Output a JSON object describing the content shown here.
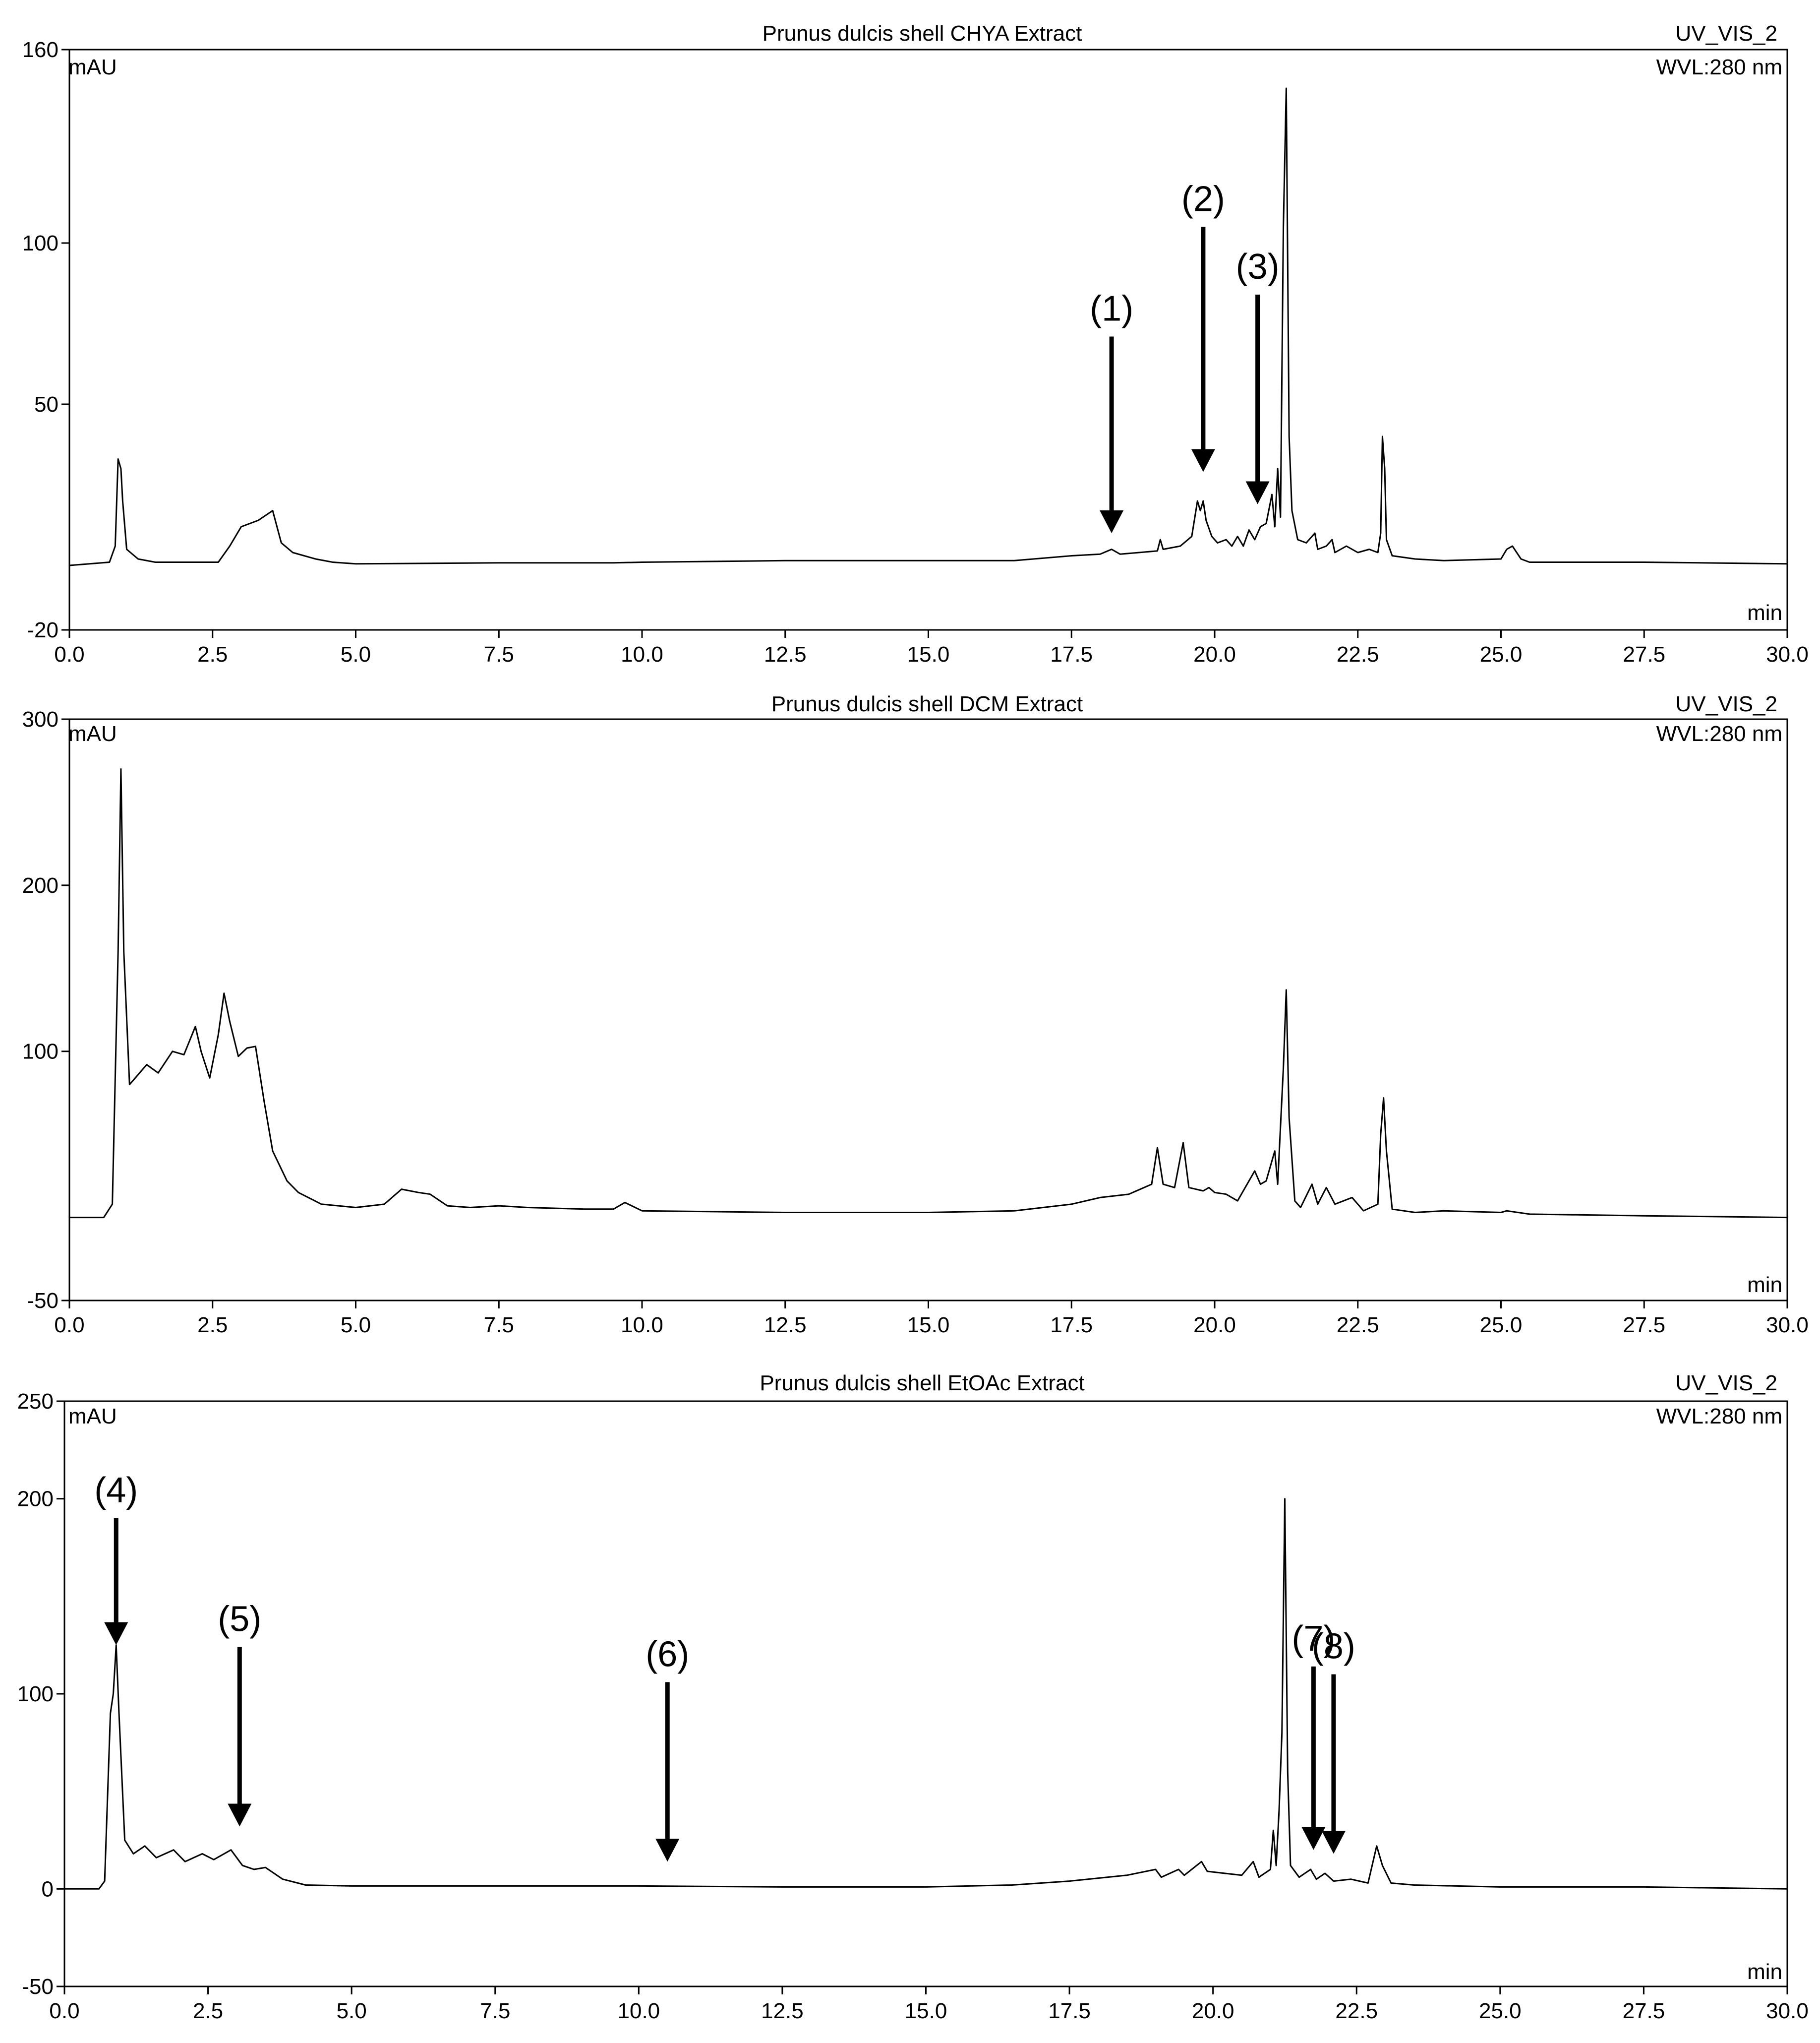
{
  "chart_data": [
    {
      "type": "line",
      "title": "Prunus dulcis shell CHYA Extract",
      "detector": "UV_VIS_2",
      "wavelength": "WVL:280 nm",
      "ylabel": "mAU",
      "xlabel": "min",
      "xlim": [
        0,
        30
      ],
      "ylim": [
        -20,
        160
      ],
      "x_ticks": [
        "0.0",
        "2.5",
        "5.0",
        "7.5",
        "10.0",
        "12.5",
        "15.0",
        "17.5",
        "20.0",
        "22.5",
        "25.0",
        "27.5",
        "30.0"
      ],
      "y_ticks": [
        {
          "value": -20,
          "label": "-20"
        },
        {
          "value": 50,
          "label": "50"
        },
        {
          "value": 100,
          "label": "100"
        },
        {
          "value": 160,
          "label": "160"
        }
      ],
      "trace": [
        [
          0,
          0
        ],
        [
          0.7,
          1
        ],
        [
          0.8,
          6
        ],
        [
          0.85,
          33
        ],
        [
          0.9,
          30
        ],
        [
          0.93,
          20
        ],
        [
          1.0,
          5
        ],
        [
          1.2,
          2
        ],
        [
          1.5,
          1
        ],
        [
          2.0,
          1
        ],
        [
          2.6,
          1
        ],
        [
          2.8,
          6
        ],
        [
          3.0,
          12
        ],
        [
          3.3,
          14
        ],
        [
          3.55,
          17
        ],
        [
          3.7,
          7
        ],
        [
          3.9,
          4
        ],
        [
          4.3,
          2
        ],
        [
          4.6,
          1
        ],
        [
          5.0,
          0.5
        ],
        [
          7.5,
          0.8
        ],
        [
          9.5,
          0.8
        ],
        [
          10.0,
          1
        ],
        [
          12.5,
          1.5
        ],
        [
          15.0,
          1.5
        ],
        [
          16.5,
          1.5
        ],
        [
          17.5,
          3
        ],
        [
          18.0,
          3.5
        ],
        [
          18.2,
          5
        ],
        [
          18.35,
          3.5
        ],
        [
          19.0,
          4.5
        ],
        [
          19.05,
          8
        ],
        [
          19.1,
          5
        ],
        [
          19.4,
          6
        ],
        [
          19.6,
          9
        ],
        [
          19.7,
          20
        ],
        [
          19.75,
          17
        ],
        [
          19.8,
          20
        ],
        [
          19.85,
          14
        ],
        [
          19.95,
          9
        ],
        [
          20.05,
          7
        ],
        [
          20.2,
          8
        ],
        [
          20.3,
          6
        ],
        [
          20.4,
          9
        ],
        [
          20.5,
          6
        ],
        [
          20.6,
          11
        ],
        [
          20.7,
          8
        ],
        [
          20.8,
          12
        ],
        [
          20.9,
          13
        ],
        [
          21.0,
          22
        ],
        [
          21.05,
          12
        ],
        [
          21.1,
          30
        ],
        [
          21.15,
          15
        ],
        [
          21.2,
          105
        ],
        [
          21.25,
          148
        ],
        [
          21.3,
          40
        ],
        [
          21.35,
          17
        ],
        [
          21.45,
          8
        ],
        [
          21.6,
          7
        ],
        [
          21.75,
          10
        ],
        [
          21.8,
          5
        ],
        [
          21.95,
          6
        ],
        [
          22.05,
          8
        ],
        [
          22.1,
          4
        ],
        [
          22.3,
          6
        ],
        [
          22.5,
          4
        ],
        [
          22.7,
          5
        ],
        [
          22.85,
          4
        ],
        [
          22.9,
          10
        ],
        [
          22.93,
          40
        ],
        [
          22.97,
          30
        ],
        [
          23.0,
          8
        ],
        [
          23.1,
          3
        ],
        [
          23.5,
          2
        ],
        [
          24.0,
          1.5
        ],
        [
          25.0,
          2
        ],
        [
          25.1,
          5
        ],
        [
          25.2,
          6
        ],
        [
          25.35,
          2
        ],
        [
          25.5,
          1
        ],
        [
          27.5,
          1
        ],
        [
          30.0,
          0.5
        ]
      ],
      "annotations": [
        {
          "label": "(1)",
          "x": 18.2,
          "arrow_from": 71,
          "arrow_to": 10
        },
        {
          "label": "(2)",
          "x": 19.8,
          "arrow_from": 105,
          "arrow_to": 29
        },
        {
          "label": "(3)",
          "x": 20.75,
          "arrow_from": 84,
          "arrow_to": 19
        }
      ]
    },
    {
      "type": "line",
      "title": "Prunus dulcis shell DCM Extract",
      "detector": "UV_VIS_2",
      "wavelength": "WVL:280 nm",
      "ylabel": "mAU",
      "xlabel": "min",
      "xlim": [
        0,
        30
      ],
      "ylim": [
        -50,
        300
      ],
      "x_ticks": [
        "0.0",
        "2.5",
        "5.0",
        "7.5",
        "10.0",
        "12.5",
        "15.0",
        "17.5",
        "20.0",
        "22.5",
        "25.0",
        "27.5",
        "30.0"
      ],
      "y_ticks": [
        {
          "value": -50,
          "label": "-50"
        },
        {
          "value": 100,
          "label": "100"
        },
        {
          "value": 200,
          "label": "200"
        },
        {
          "value": 300,
          "label": "300"
        }
      ],
      "trace": [
        [
          0,
          0
        ],
        [
          0.6,
          0
        ],
        [
          0.75,
          8
        ],
        [
          0.85,
          160
        ],
        [
          0.9,
          270
        ],
        [
          0.95,
          160
        ],
        [
          1.05,
          80
        ],
        [
          1.2,
          86
        ],
        [
          1.35,
          92
        ],
        [
          1.55,
          87
        ],
        [
          1.8,
          100
        ],
        [
          2.0,
          98
        ],
        [
          2.2,
          115
        ],
        [
          2.3,
          100
        ],
        [
          2.45,
          84
        ],
        [
          2.6,
          110
        ],
        [
          2.7,
          135
        ],
        [
          2.8,
          118
        ],
        [
          2.95,
          97
        ],
        [
          3.1,
          102
        ],
        [
          3.25,
          103
        ],
        [
          3.4,
          70
        ],
        [
          3.55,
          40
        ],
        [
          3.8,
          22
        ],
        [
          4.0,
          15
        ],
        [
          4.4,
          8
        ],
        [
          5.0,
          6
        ],
        [
          5.5,
          8
        ],
        [
          5.8,
          17
        ],
        [
          6.1,
          15
        ],
        [
          6.3,
          14
        ],
        [
          6.6,
          7
        ],
        [
          7.0,
          6
        ],
        [
          7.5,
          7
        ],
        [
          8.0,
          6
        ],
        [
          9.0,
          5
        ],
        [
          9.5,
          5
        ],
        [
          9.7,
          9
        ],
        [
          10.0,
          4
        ],
        [
          12.5,
          3
        ],
        [
          15.0,
          3
        ],
        [
          16.5,
          4
        ],
        [
          17.5,
          8
        ],
        [
          18.0,
          12
        ],
        [
          18.5,
          14
        ],
        [
          18.9,
          20
        ],
        [
          19.0,
          42
        ],
        [
          19.1,
          20
        ],
        [
          19.3,
          18
        ],
        [
          19.45,
          45
        ],
        [
          19.55,
          18
        ],
        [
          19.8,
          16
        ],
        [
          19.9,
          18
        ],
        [
          20.0,
          15
        ],
        [
          20.2,
          14
        ],
        [
          20.4,
          10
        ],
        [
          20.6,
          22
        ],
        [
          20.7,
          28
        ],
        [
          20.8,
          20
        ],
        [
          20.9,
          22
        ],
        [
          21.05,
          40
        ],
        [
          21.1,
          20
        ],
        [
          21.2,
          90
        ],
        [
          21.25,
          137
        ],
        [
          21.3,
          60
        ],
        [
          21.4,
          10
        ],
        [
          21.5,
          6
        ],
        [
          21.7,
          20
        ],
        [
          21.8,
          8
        ],
        [
          21.95,
          18
        ],
        [
          22.1,
          8
        ],
        [
          22.4,
          12
        ],
        [
          22.6,
          4
        ],
        [
          22.85,
          8
        ],
        [
          22.9,
          50
        ],
        [
          22.95,
          72
        ],
        [
          23.0,
          40
        ],
        [
          23.1,
          5
        ],
        [
          23.5,
          3
        ],
        [
          24.0,
          4
        ],
        [
          25.0,
          3
        ],
        [
          25.1,
          4
        ],
        [
          25.5,
          2
        ],
        [
          27.5,
          1
        ],
        [
          30.0,
          0
        ]
      ]
    },
    {
      "type": "line",
      "title": "Prunus dulcis shell EtOAc Extract",
      "detector": "UV_VIS_2",
      "wavelength": "WVL:280 nm",
      "ylabel": "mAU",
      "xlabel": "min",
      "xlim": [
        0,
        30
      ],
      "ylim": [
        -50,
        250
      ],
      "x_ticks": [
        "0.0",
        "2.5",
        "5.0",
        "7.5",
        "10.0",
        "12.5",
        "15.0",
        "17.5",
        "20.0",
        "22.5",
        "25.0",
        "27.5",
        "30.0"
      ],
      "y_ticks": [
        {
          "value": -50,
          "label": "-50"
        },
        {
          "value": 0,
          "label": "0"
        },
        {
          "value": 100,
          "label": "100"
        },
        {
          "value": 200,
          "label": "200"
        },
        {
          "value": 250,
          "label": "250"
        }
      ],
      "trace": [
        [
          0,
          0
        ],
        [
          0.6,
          0
        ],
        [
          0.7,
          4
        ],
        [
          0.8,
          90
        ],
        [
          0.85,
          100
        ],
        [
          0.9,
          125
        ],
        [
          0.95,
          90
        ],
        [
          1.05,
          25
        ],
        [
          1.2,
          18
        ],
        [
          1.4,
          22
        ],
        [
          1.6,
          16
        ],
        [
          1.9,
          20
        ],
        [
          2.1,
          14
        ],
        [
          2.4,
          18
        ],
        [
          2.6,
          15
        ],
        [
          2.9,
          20
        ],
        [
          3.1,
          12
        ],
        [
          3.3,
          10
        ],
        [
          3.5,
          11
        ],
        [
          3.8,
          5
        ],
        [
          4.2,
          2
        ],
        [
          5.0,
          1.5
        ],
        [
          7.5,
          1.5
        ],
        [
          10.0,
          1.5
        ],
        [
          12.5,
          1
        ],
        [
          15.0,
          1
        ],
        [
          16.5,
          2
        ],
        [
          17.5,
          4
        ],
        [
          18.5,
          7
        ],
        [
          19.0,
          10
        ],
        [
          19.1,
          6
        ],
        [
          19.4,
          10
        ],
        [
          19.5,
          7
        ],
        [
          19.8,
          14
        ],
        [
          19.9,
          9
        ],
        [
          20.2,
          8
        ],
        [
          20.5,
          7
        ],
        [
          20.7,
          14
        ],
        [
          20.8,
          6
        ],
        [
          21.0,
          10
        ],
        [
          21.05,
          30
        ],
        [
          21.1,
          12
        ],
        [
          21.15,
          40
        ],
        [
          21.2,
          80
        ],
        [
          21.25,
          200
        ],
        [
          21.3,
          60
        ],
        [
          21.35,
          12
        ],
        [
          21.5,
          6
        ],
        [
          21.7,
          10
        ],
        [
          21.8,
          5
        ],
        [
          21.95,
          8
        ],
        [
          22.1,
          4
        ],
        [
          22.4,
          5
        ],
        [
          22.7,
          3
        ],
        [
          22.85,
          22
        ],
        [
          22.95,
          12
        ],
        [
          23.1,
          3
        ],
        [
          23.5,
          2
        ],
        [
          25.0,
          1
        ],
        [
          27.5,
          1
        ],
        [
          30.0,
          0
        ]
      ],
      "annotations": [
        {
          "label": "(4)",
          "x": 0.9,
          "arrow_from": 190,
          "arrow_to": 125
        },
        {
          "label": "(5)",
          "x": 3.05,
          "arrow_from": 124,
          "arrow_to": 32
        },
        {
          "label": "(6)",
          "x": 10.5,
          "arrow_from": 106,
          "arrow_to": 14
        },
        {
          "label": "(7)",
          "x": 21.75,
          "arrow_from": 114,
          "arrow_to": 20
        },
        {
          "label": "(8)",
          "x": 22.1,
          "arrow_from": 110,
          "arrow_to": 18
        }
      ]
    }
  ]
}
